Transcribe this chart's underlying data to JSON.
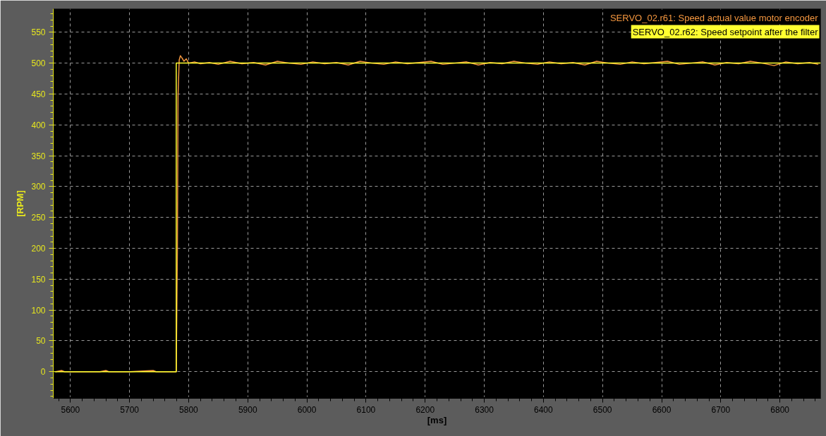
{
  "chart_data": {
    "type": "line",
    "xlabel": "[ms]",
    "ylabel": "[RPM]",
    "xlim": [
      5571,
      6869
    ],
    "xticks": [
      5600,
      5700,
      5800,
      5900,
      6000,
      6100,
      6200,
      6300,
      6400,
      6500,
      6600,
      6700,
      6800
    ],
    "ylim": [
      -43,
      588
    ],
    "yticks": [
      0,
      50,
      100,
      150,
      200,
      250,
      300,
      350,
      400,
      450,
      500,
      550
    ],
    "grid": true,
    "line_style": "solid",
    "marker": "none",
    "series": [
      {
        "name": "SERVO_02.r61: Speed actual value motor encoder",
        "color": "#f5973f",
        "x": [
          5575,
          5585,
          5590,
          5600,
          5650,
          5660,
          5665,
          5700,
          5740,
          5745,
          5779,
          5781,
          5782,
          5784,
          5786,
          5789,
          5792,
          5796,
          5800,
          5810,
          5820,
          5835,
          5850,
          5870,
          5890,
          5910,
          5930,
          5950,
          5970,
          5990,
          6010,
          6030,
          6050,
          6070,
          6090,
          6110,
          6130,
          6150,
          6170,
          6190,
          6210,
          6230,
          6250,
          6270,
          6290,
          6310,
          6330,
          6350,
          6370,
          6390,
          6410,
          6430,
          6450,
          6470,
          6490,
          6510,
          6530,
          6550,
          6570,
          6590,
          6610,
          6630,
          6650,
          6670,
          6690,
          6710,
          6730,
          6750,
          6770,
          6790,
          6810,
          6830,
          6850,
          6865
        ],
        "values": [
          0,
          2,
          0,
          0,
          0,
          2,
          0,
          0,
          2,
          0,
          0,
          200,
          445,
          505,
          512,
          508,
          503,
          507,
          500,
          502,
          499,
          501,
          498,
          503,
          499,
          501,
          497,
          503,
          500,
          498,
          502,
          499,
          501,
          497,
          503,
          500,
          498,
          502,
          499,
          501,
          503,
          498,
          500,
          502,
          497,
          501,
          499,
          503,
          500,
          498,
          502,
          499,
          501,
          497,
          503,
          500,
          498,
          502,
          499,
          501,
          503,
          498,
          500,
          502,
          497,
          501,
          499,
          503,
          500,
          496,
          502,
          499,
          501,
          498
        ]
      },
      {
        "name": "SERVO_02.r62: Speed setpoint after the filter",
        "color": "#ffff30",
        "x": [
          5573,
          5779,
          5779,
          6869
        ],
        "values": [
          0,
          0,
          500,
          500
        ]
      }
    ]
  }
}
